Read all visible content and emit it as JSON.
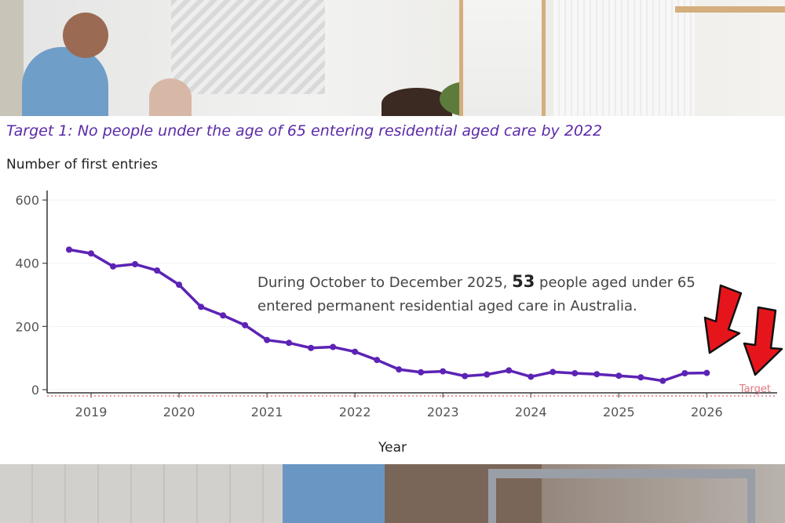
{
  "chart_title": "Target 1: No people under the age of 65 entering residential aged care by 2022",
  "annotation": {
    "pre": "During October to December 2025, ",
    "value": "53",
    "post": " people aged under 65 entered permanent residential aged care in Australia."
  },
  "colors": {
    "series": "#5c23b5",
    "target": "#e07a86",
    "title": "#5b2aa8"
  },
  "chart_data": {
    "type": "line",
    "title": "Target 1: No people under the age of 65 entering residential aged care by 2022",
    "xlabel": "Year",
    "ylabel": "Number of first entries",
    "xlim": [
      2018.5,
      2026.8
    ],
    "ylim": [
      -10,
      630
    ],
    "x_ticks": [
      2019,
      2020,
      2021,
      2022,
      2023,
      2024,
      2025,
      2026
    ],
    "y_ticks": [
      0,
      200,
      400,
      600
    ],
    "grid": "horizontal",
    "series": [
      {
        "x": [
          2018.75,
          2019.0,
          2019.25,
          2019.5,
          2019.75,
          2020.0,
          2020.25,
          2020.5,
          2020.75,
          2021.0,
          2021.25,
          2021.5,
          2021.75,
          2022.0,
          2022.25,
          2022.5,
          2022.75,
          2023.0,
          2023.25,
          2023.5,
          2023.75,
          2024.0,
          2024.25,
          2024.5,
          2024.75,
          2025.0,
          2025.25,
          2025.5,
          2025.75,
          2026.0
        ],
        "values": [
          443,
          431,
          390,
          397,
          377,
          332,
          262,
          235,
          204,
          157,
          148,
          132,
          135,
          120,
          94,
          64,
          55,
          58,
          43,
          48,
          61,
          41,
          56,
          52,
          49,
          44,
          39,
          28,
          52,
          53
        ]
      }
    ],
    "target": {
      "label": "Target",
      "value": 0
    }
  }
}
